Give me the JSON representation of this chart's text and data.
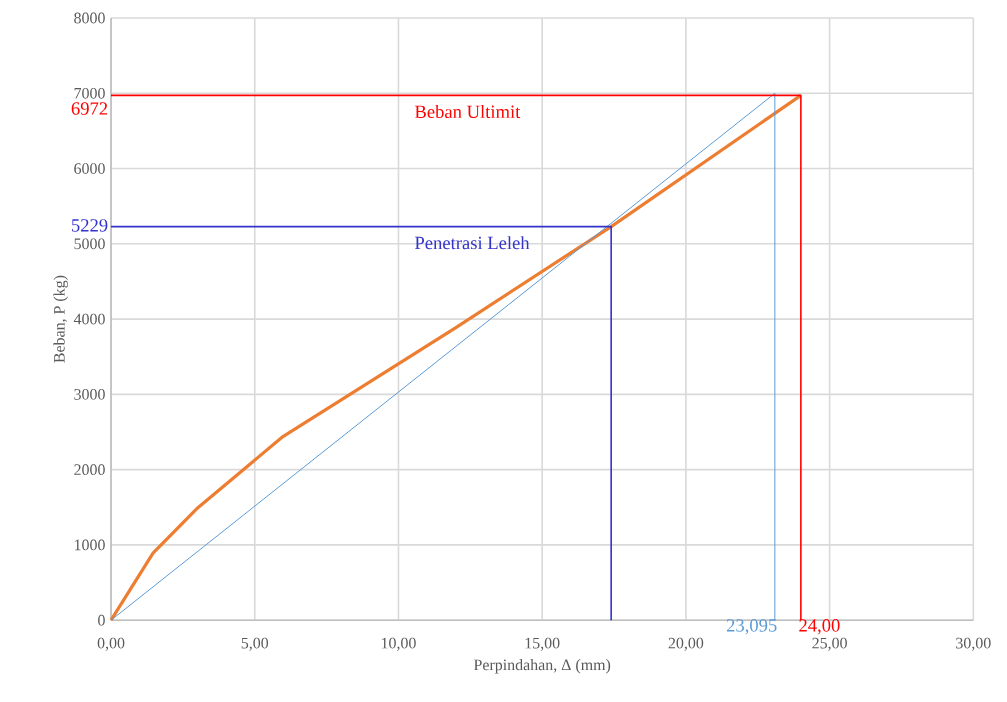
{
  "chart_data": {
    "type": "line",
    "xlabel": "Perpindahan, Δ (mm)",
    "ylabel": "Beban, P (kg)",
    "xlim": [
      0,
      30
    ],
    "ylim": [
      0,
      8000
    ],
    "xticks": [
      {
        "value": 0,
        "label": "0,00"
      },
      {
        "value": 5,
        "label": "5,00"
      },
      {
        "value": 10,
        "label": "10,00"
      },
      {
        "value": 15,
        "label": "15,00"
      },
      {
        "value": 20,
        "label": "20,00"
      },
      {
        "value": 25,
        "label": "25,00"
      },
      {
        "value": 30,
        "label": "30,00"
      }
    ],
    "yticks": [
      0,
      1000,
      2000,
      3000,
      4000,
      5000,
      6000,
      7000,
      8000
    ],
    "grid": true,
    "series": [
      {
        "color": "#ed7d31",
        "x": [
          0,
          1.46,
          2.98,
          5.98,
          11.97,
          17.4,
          24.0
        ],
        "values": [
          0,
          890,
          1480,
          2440,
          3880,
          5229,
          6972
        ]
      },
      {
        "color": "#5b9bd5",
        "x": [
          0,
          23.095,
          23.095
        ],
        "values": [
          0,
          7000,
          0
        ]
      },
      {
        "color": "#ff0000",
        "x": [
          0,
          24.0,
          24.0
        ],
        "values": [
          6972,
          6972,
          0
        ]
      },
      {
        "color": "#3333cc",
        "x": [
          0,
          17.4,
          17.4
        ],
        "values": [
          5229,
          5229,
          0
        ]
      }
    ],
    "annotations": [
      {
        "text": "6972",
        "x": 0,
        "y": 6972
      },
      {
        "text": "Beban Ultimit",
        "x": 10.5,
        "y": 6972
      },
      {
        "text": "5229",
        "x": 0,
        "y": 5229
      },
      {
        "text": "Penetrasi Leleh",
        "x": 10.5,
        "y": 5229
      },
      {
        "text": "23,095",
        "x": 23.095,
        "y": 0
      },
      {
        "text": "24,00",
        "x": 24.0,
        "y": 0
      }
    ]
  }
}
